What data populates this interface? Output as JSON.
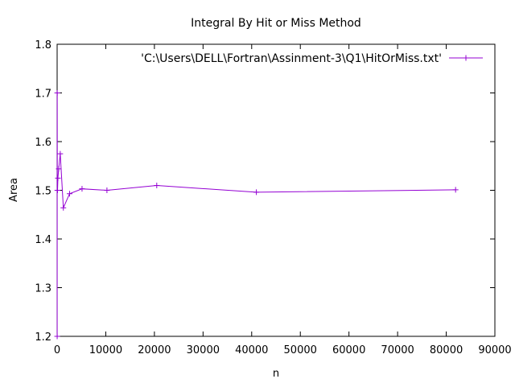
{
  "chart_data": {
    "type": "line",
    "title": "Integral By Hit or Miss Method",
    "xlabel": "n",
    "ylabel": "Area",
    "xlim": [
      0,
      90000
    ],
    "ylim": [
      1.2,
      1.8
    ],
    "xticks": [
      "0",
      "10000",
      "20000",
      "30000",
      "40000",
      "50000",
      "60000",
      "70000",
      "80000",
      "90000"
    ],
    "yticks": [
      "1.2",
      "1.3",
      "1.4",
      "1.5",
      "1.6",
      "1.7",
      "1.8"
    ],
    "grid": false,
    "legend_position": "top-right",
    "series": [
      {
        "name": "'C:\\Users\\DELL\\Fortran\\Assinment-3\\Q1\\HitOrMiss.txt'",
        "color": "#9400d3",
        "marker": "plus",
        "x": [
          10,
          20,
          40,
          80,
          160,
          320,
          640,
          1280,
          2560,
          5120,
          10240,
          20480,
          40960,
          81920
        ],
        "y": [
          1.2,
          1.7,
          1.5,
          1.5,
          1.525,
          1.544,
          1.575,
          1.464,
          1.493,
          1.503,
          1.5,
          1.51,
          1.496,
          1.501
        ]
      }
    ]
  }
}
